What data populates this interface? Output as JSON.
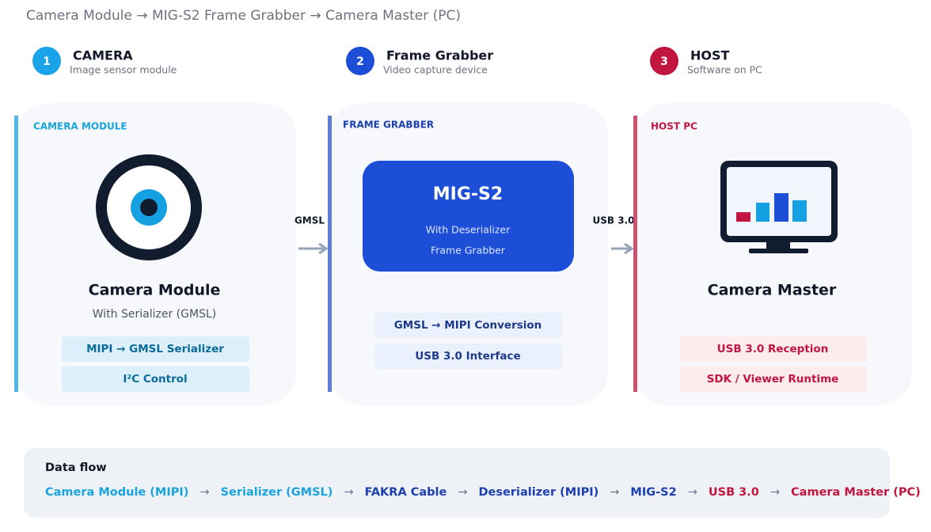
{
  "title": "Camera Module → MIG-S2 Frame Grabber → Camera Master (PC)",
  "steps": [
    {
      "number": "1",
      "title": "CAMERA",
      "subtitle": "Image sensor module"
    },
    {
      "number": "2",
      "title": "Frame Grabber",
      "subtitle": "Video capture device"
    },
    {
      "number": "3",
      "title": "HOST",
      "subtitle": "Software on PC"
    }
  ],
  "panels": [
    {
      "label": "CAMERA MODULE",
      "name": "Camera Module",
      "description": "With Serializer (GMSL)",
      "features": [
        "MIPI → GMSL Serializer",
        "I²C Control"
      ]
    },
    {
      "label": "FRAME GRABBER",
      "device": {
        "name": "MIG-S2",
        "lines": [
          "With Deserializer",
          "Frame Grabber"
        ]
      },
      "features": [
        "GMSL → MIPI Conversion",
        "USB 3.0 Interface"
      ]
    },
    {
      "label": "HOST PC",
      "name": "Camera Master",
      "features": [
        "USB 3.0 Reception",
        "SDK / Viewer Runtime"
      ]
    }
  ],
  "connectors": [
    "GMSL",
    "USB 3.0"
  ],
  "data_flow": {
    "title": "Data flow",
    "separator": "→",
    "items": [
      {
        "text": "Camera Module (MIPI)",
        "color": "#1aa3dc"
      },
      {
        "text": "Serializer (GMSL)",
        "color": "#1aa3dc"
      },
      {
        "text": "FAKRA Cable",
        "color": "#1e40af"
      },
      {
        "text": "Deserializer (MIPI)",
        "color": "#1e40af"
      },
      {
        "text": "MIG-S2",
        "color": "#1e40af"
      },
      {
        "text": "USB 3.0",
        "color": "#c0163f"
      },
      {
        "text": "Camera Master (PC)",
        "color": "#c0163f"
      }
    ]
  }
}
